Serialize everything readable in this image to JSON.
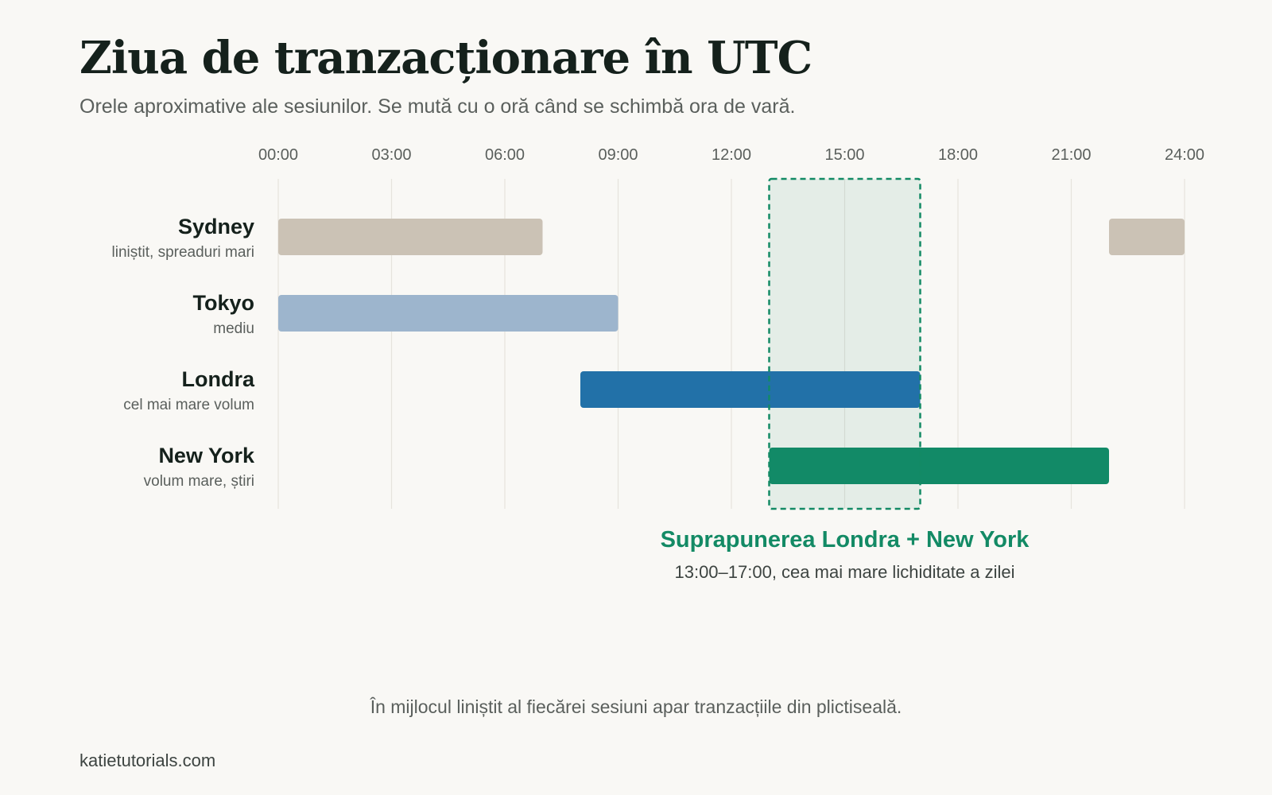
{
  "header": {
    "title": "Ziua de tranzacționare în UTC",
    "subtitle": "Orele aproximative ale sesiunilor. Se mută cu o oră când se schimbă ora de vară."
  },
  "chart_data": {
    "type": "bar",
    "orientation": "horizontal-timeline",
    "xlabel": "",
    "ylabel": "",
    "xlim": [
      0,
      24
    ],
    "x_ticks": [
      "00:00",
      "03:00",
      "06:00",
      "09:00",
      "12:00",
      "15:00",
      "18:00",
      "21:00",
      "24:00"
    ],
    "grid": true,
    "sessions": [
      {
        "name": "Sydney",
        "description": "liniștit, spreaduri mari",
        "color": "#cbc2b5",
        "segments": [
          [
            0,
            7
          ],
          [
            22,
            24
          ]
        ]
      },
      {
        "name": "Tokyo",
        "description": "mediu",
        "color": "#9db5cd",
        "segments": [
          [
            0,
            9
          ]
        ]
      },
      {
        "name": "Londra",
        "description": "cel mai mare volum",
        "color": "#2271a8",
        "segments": [
          [
            8,
            17
          ]
        ]
      },
      {
        "name": "New York",
        "description": "volum mare, știri",
        "color": "#128a67",
        "segments": [
          [
            13,
            22
          ]
        ]
      }
    ],
    "overlap": {
      "start": 13,
      "end": 17,
      "title": "Suprapunerea Londra + New York",
      "description": "13:00–17:00, cea mai mare lichiditate a zilei",
      "color": "#138a65"
    }
  },
  "footer": {
    "note": "În mijlocul liniștit al fiecărei sesiuni apar tranzacțiile din plictiseală.",
    "brand": "katietutorials.com"
  }
}
